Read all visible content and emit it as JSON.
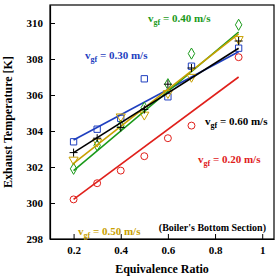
{
  "chart_data": {
    "type": "scatter",
    "x_label": "Equivalence Ratio",
    "y_label": "Exhaust Temperature [K]",
    "annotations": [
      "(Boiler's Bottom Section)"
    ],
    "xlim": [
      0.1,
      1.05
    ],
    "ylim": [
      298,
      311
    ],
    "xticks": [
      0.2,
      0.4,
      0.6,
      0.8,
      1
    ],
    "yticks": [
      298,
      300,
      302,
      304,
      306,
      308,
      310
    ],
    "grid": false,
    "series": [
      {
        "label": {
          "base": "v",
          "sub": "gf",
          "text": " = 0.20 m/s"
        },
        "color": "#e0201b",
        "marker": "circle",
        "x": [
          0.2,
          0.3,
          0.4,
          0.5,
          0.6,
          0.7,
          0.9
        ],
        "values": [
          300.2,
          301.1,
          301.8,
          302.6,
          303.6,
          304.3,
          308.1
        ],
        "fit": {
          "x": [
            0.2,
            0.9
          ],
          "values": [
            300.2,
            307.0
          ]
        }
      },
      {
        "label": {
          "base": "v",
          "sub": "gf",
          "text": " = 0.30 m/s"
        },
        "color": "#1f3fbf",
        "marker": "square",
        "x": [
          0.2,
          0.3,
          0.4,
          0.5,
          0.6,
          0.7,
          0.9
        ],
        "values": [
          303.4,
          304.1,
          304.7,
          306.9,
          305.9,
          307.6,
          308.6
        ],
        "fit": {
          "x": [
            0.2,
            0.9
          ],
          "values": [
            303.5,
            308.4
          ]
        }
      },
      {
        "label": {
          "base": "v",
          "sub": "gf",
          "text": " = 0.40 m/s"
        },
        "color": "#1a9a1a",
        "marker": "diamond",
        "x": [
          0.2,
          0.3,
          0.4,
          0.5,
          0.6,
          0.7,
          0.9
        ],
        "values": [
          301.9,
          303.2,
          304.3,
          305.3,
          306.6,
          308.3,
          309.9
        ],
        "fit": {
          "x": [
            0.2,
            0.9
          ],
          "values": [
            301.8,
            309.5
          ]
        }
      },
      {
        "label": {
          "base": "v",
          "sub": "gf",
          "text": " = 0.50 m/s"
        },
        "color": "#c8a000",
        "marker": "triangle-down",
        "x": [
          0.2,
          0.3,
          0.4,
          0.5,
          0.6,
          0.7,
          0.9
        ],
        "values": [
          302.4,
          303.4,
          304.8,
          304.9,
          306.1,
          307.0,
          309.1
        ],
        "fit": {
          "x": [
            0.2,
            0.9
          ],
          "values": [
            302.2,
            309.4
          ]
        }
      },
      {
        "label": {
          "base": "v",
          "sub": "gf",
          "text": " = 0.60 m/s"
        },
        "color": "#000000",
        "marker": "plus",
        "x": [
          0.2,
          0.3,
          0.4,
          0.5,
          0.6,
          0.7,
          0.9
        ],
        "values": [
          302.8,
          303.6,
          304.2,
          305.2,
          306.6,
          307.5,
          309.0
        ],
        "fit": {
          "x": [
            0.2,
            0.9
          ],
          "values": [
            302.8,
            308.6
          ]
        }
      }
    ]
  }
}
